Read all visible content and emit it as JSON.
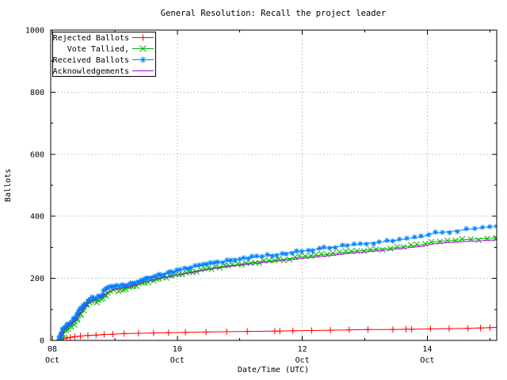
{
  "chart_data": {
    "type": "line",
    "title": "General Resolution: Recall the project leader",
    "xlabel": "Date/Time (UTC)",
    "ylabel": "Ballots",
    "ylim": [
      0,
      1000
    ],
    "x_unit": "days since Oct 8 00:00 UTC",
    "xlim_days": [
      0,
      7.11
    ],
    "grid": true,
    "legend_position": "top-left",
    "colors": {
      "rejected": "#ff0000",
      "tallied": "#00b400",
      "received": "#0080ff",
      "acknowledgements": "#b400e6",
      "grid": "#bcbcbc",
      "border": "#000000"
    },
    "y_ticks": [
      0,
      200,
      400,
      600,
      800,
      1000
    ],
    "y_minor_ticks": [
      100,
      300,
      500,
      700,
      900
    ],
    "x_ticks": [
      {
        "day": 0,
        "line1": "08",
        "line2": "Oct"
      },
      {
        "day": 2,
        "line1": "10",
        "line2": "Oct"
      },
      {
        "day": 4,
        "line1": "12",
        "line2": "Oct"
      },
      {
        "day": 6,
        "line1": "14",
        "line2": "Oct"
      }
    ],
    "x_minor_tick_days": [
      1,
      3,
      5,
      7
    ],
    "series": [
      {
        "name": "Rejected Ballots",
        "slug": "rejected-ballots",
        "color": "#ff0000",
        "marker": "plus",
        "dense_markers": false,
        "points": [
          [
            0.11,
            0
          ],
          [
            0.14,
            3
          ],
          [
            0.18,
            6
          ],
          [
            0.23,
            8
          ],
          [
            0.29,
            10
          ],
          [
            0.36,
            12
          ],
          [
            0.45,
            14
          ],
          [
            0.57,
            16
          ],
          [
            0.7,
            17
          ],
          [
            0.83,
            19
          ],
          [
            0.97,
            20
          ],
          [
            1.15,
            22
          ],
          [
            1.38,
            23
          ],
          [
            1.62,
            24
          ],
          [
            1.86,
            25
          ],
          [
            2.13,
            26
          ],
          [
            2.46,
            27
          ],
          [
            2.79,
            28
          ],
          [
            3.12,
            29
          ],
          [
            3.56,
            30
          ],
          [
            3.64,
            30
          ],
          [
            3.85,
            31
          ],
          [
            4.15,
            32
          ],
          [
            4.45,
            33
          ],
          [
            4.75,
            34
          ],
          [
            5.05,
            35
          ],
          [
            5.45,
            35
          ],
          [
            5.66,
            36
          ],
          [
            5.75,
            36
          ],
          [
            6.05,
            37
          ],
          [
            6.35,
            38
          ],
          [
            6.65,
            39
          ],
          [
            6.85,
            40
          ],
          [
            7.0,
            41
          ],
          [
            7.11,
            42
          ]
        ]
      },
      {
        "name": "Vote Tallied,",
        "slug": "vote-tallied",
        "color": "#00b400",
        "marker": "cross",
        "dense_markers": true,
        "points": [
          [
            0.13,
            0
          ],
          [
            0.15,
            14
          ],
          [
            0.18,
            27
          ],
          [
            0.21,
            36
          ],
          [
            0.25,
            43
          ],
          [
            0.29,
            48
          ],
          [
            0.34,
            56
          ],
          [
            0.39,
            68
          ],
          [
            0.44,
            82
          ],
          [
            0.49,
            96
          ],
          [
            0.53,
            108
          ],
          [
            0.58,
            118
          ],
          [
            0.64,
            124
          ],
          [
            0.71,
            129
          ],
          [
            0.77,
            135
          ],
          [
            0.83,
            143
          ],
          [
            0.89,
            152
          ],
          [
            0.96,
            159
          ],
          [
            1.03,
            164
          ],
          [
            1.13,
            167
          ],
          [
            1.25,
            171
          ],
          [
            1.36,
            178
          ],
          [
            1.45,
            185
          ],
          [
            1.55,
            190
          ],
          [
            1.66,
            196
          ],
          [
            1.79,
            202
          ],
          [
            1.93,
            208
          ],
          [
            2.07,
            214
          ],
          [
            2.21,
            220
          ],
          [
            2.35,
            225
          ],
          [
            2.51,
            231
          ],
          [
            2.68,
            237
          ],
          [
            2.87,
            242
          ],
          [
            3.06,
            247
          ],
          [
            3.29,
            253
          ],
          [
            3.53,
            258
          ],
          [
            3.76,
            263
          ],
          [
            3.99,
            269
          ],
          [
            4.23,
            274
          ],
          [
            4.46,
            279
          ],
          [
            4.69,
            284
          ],
          [
            4.93,
            289
          ],
          [
            5.16,
            293
          ],
          [
            5.39,
            297
          ],
          [
            5.58,
            301
          ],
          [
            5.76,
            305
          ],
          [
            5.95,
            309
          ],
          [
            6.01,
            313
          ],
          [
            6.08,
            317
          ],
          [
            6.25,
            320
          ],
          [
            6.44,
            323
          ],
          [
            6.62,
            325
          ],
          [
            6.81,
            327
          ],
          [
            6.99,
            329
          ],
          [
            7.11,
            330
          ]
        ]
      },
      {
        "name": "Received Ballots",
        "slug": "received-ballots",
        "color": "#0080ff",
        "marker": "star",
        "dense_markers": true,
        "points": [
          [
            0.11,
            0
          ],
          [
            0.13,
            12
          ],
          [
            0.15,
            25
          ],
          [
            0.18,
            38
          ],
          [
            0.21,
            47
          ],
          [
            0.25,
            53
          ],
          [
            0.29,
            58
          ],
          [
            0.34,
            66
          ],
          [
            0.38,
            78
          ],
          [
            0.43,
            92
          ],
          [
            0.48,
            106
          ],
          [
            0.52,
            118
          ],
          [
            0.57,
            128
          ],
          [
            0.62,
            134
          ],
          [
            0.69,
            139
          ],
          [
            0.75,
            145
          ],
          [
            0.81,
            153
          ],
          [
            0.87,
            163
          ],
          [
            0.94,
            170
          ],
          [
            1.01,
            175
          ],
          [
            1.1,
            178
          ],
          [
            1.22,
            182
          ],
          [
            1.33,
            189
          ],
          [
            1.42,
            196
          ],
          [
            1.52,
            203
          ],
          [
            1.63,
            208
          ],
          [
            1.76,
            214
          ],
          [
            1.9,
            220
          ],
          [
            2.04,
            227
          ],
          [
            2.18,
            233
          ],
          [
            2.32,
            239
          ],
          [
            2.48,
            245
          ],
          [
            2.65,
            251
          ],
          [
            2.84,
            257
          ],
          [
            3.03,
            263
          ],
          [
            3.26,
            269
          ],
          [
            3.5,
            275
          ],
          [
            3.73,
            281
          ],
          [
            3.96,
            287
          ],
          [
            4.2,
            293
          ],
          [
            4.43,
            299
          ],
          [
            4.66,
            305
          ],
          [
            4.9,
            310
          ],
          [
            5.13,
            315
          ],
          [
            5.36,
            320
          ],
          [
            5.55,
            324
          ],
          [
            5.73,
            329
          ],
          [
            5.92,
            334
          ],
          [
            5.98,
            338
          ],
          [
            6.05,
            344
          ],
          [
            6.22,
            348
          ],
          [
            6.41,
            352
          ],
          [
            6.59,
            357
          ],
          [
            6.78,
            361
          ],
          [
            6.96,
            365
          ],
          [
            7.11,
            368
          ]
        ]
      },
      {
        "name": "Acknowledgements",
        "slug": "acknowledgements",
        "color": "#b400e6",
        "marker": "none",
        "dense_markers": false,
        "points": [
          [
            0.13,
            0
          ],
          [
            0.15,
            16
          ],
          [
            0.18,
            30
          ],
          [
            0.21,
            39
          ],
          [
            0.25,
            46
          ],
          [
            0.29,
            52
          ],
          [
            0.34,
            60
          ],
          [
            0.39,
            72
          ],
          [
            0.44,
            86
          ],
          [
            0.49,
            100
          ],
          [
            0.53,
            112
          ],
          [
            0.58,
            122
          ],
          [
            0.64,
            128
          ],
          [
            0.71,
            133
          ],
          [
            0.77,
            139
          ],
          [
            0.83,
            147
          ],
          [
            0.89,
            156
          ],
          [
            0.96,
            163
          ],
          [
            1.03,
            167
          ],
          [
            1.13,
            170
          ],
          [
            1.25,
            174
          ],
          [
            1.36,
            181
          ],
          [
            1.45,
            187
          ],
          [
            1.55,
            192
          ],
          [
            1.66,
            198
          ],
          [
            1.79,
            203
          ],
          [
            1.93,
            208
          ],
          [
            2.07,
            213
          ],
          [
            2.21,
            218
          ],
          [
            2.35,
            223
          ],
          [
            2.51,
            229
          ],
          [
            2.68,
            234
          ],
          [
            2.87,
            239
          ],
          [
            3.06,
            244
          ],
          [
            3.29,
            249
          ],
          [
            3.53,
            254
          ],
          [
            3.76,
            259
          ],
          [
            3.99,
            264
          ],
          [
            4.23,
            269
          ],
          [
            4.46,
            274
          ],
          [
            4.69,
            279
          ],
          [
            4.93,
            284
          ],
          [
            5.16,
            288
          ],
          [
            5.39,
            292
          ],
          [
            5.58,
            296
          ],
          [
            5.76,
            300
          ],
          [
            5.95,
            304
          ],
          [
            6.01,
            307
          ],
          [
            6.08,
            311
          ],
          [
            6.25,
            314
          ],
          [
            6.44,
            317
          ],
          [
            6.62,
            319
          ],
          [
            6.81,
            321
          ],
          [
            6.99,
            323
          ],
          [
            7.11,
            324
          ]
        ]
      }
    ]
  }
}
